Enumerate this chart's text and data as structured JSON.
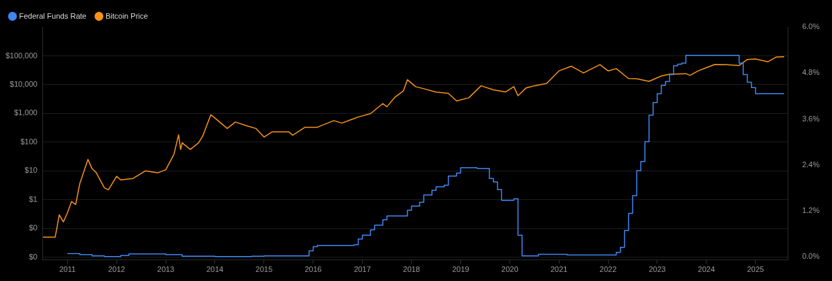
{
  "chart_data": {
    "type": "line",
    "log": "y",
    "grid": "y",
    "legend": "top left",
    "xlim": [
      "2010-07",
      "2025-09"
    ],
    "xticks": [
      "2011",
      "2012",
      "2013",
      "2014",
      "2015",
      "2016",
      "2017",
      "2018",
      "2019",
      "2020",
      "2021",
      "2022",
      "2023",
      "2024",
      "2025"
    ],
    "ylim": [
      0.008,
      1000000
    ],
    "yticks": [
      {
        "value": 0.01,
        "label": "$0"
      },
      {
        "value": 0.1,
        "label": "$0"
      },
      {
        "value": 1,
        "label": "$1"
      },
      {
        "value": 10,
        "label": "$10"
      },
      {
        "value": 100,
        "label": "$100"
      },
      {
        "value": 1000,
        "label": "$1,000"
      },
      {
        "value": 10000,
        "label": "$10,000"
      },
      {
        "value": 100000,
        "label": "$100,000"
      }
    ],
    "y2lim": [
      -0.08,
      6.0
    ],
    "y2ticks": [
      {
        "value": 0,
        "label": "0.0%"
      },
      {
        "value": 1.2,
        "label": "1.2%"
      },
      {
        "value": 2.4,
        "label": "2.4%"
      },
      {
        "value": 3.6,
        "label": "3.6%"
      },
      {
        "value": 4.8,
        "label": "4.8%"
      },
      {
        "value": 6,
        "label": "6.0%"
      }
    ],
    "series": [
      {
        "name": "Federal Funds Rate",
        "type": "step",
        "axis": "y2",
        "color": "#3f86f0",
        "x": [
          "2011-01",
          "2011-04",
          "2011-07",
          "2011-10",
          "2012-02",
          "2012-04",
          "2013-01",
          "2013-05",
          "2014-01",
          "2014-10",
          "2015-01",
          "2015-12",
          "2016-01",
          "2016-02",
          "2016-11",
          "2016-12",
          "2017-01",
          "2017-03",
          "2017-04",
          "2017-06",
          "2017-07",
          "2017-12",
          "2018-01",
          "2018-03",
          "2018-04",
          "2018-06",
          "2018-07",
          "2018-09",
          "2018-10",
          "2018-12",
          "2019-01",
          "2019-05",
          "2019-08",
          "2019-09",
          "2019-10",
          "2019-11",
          "2020-02",
          "2020-03",
          "2020-04",
          "2020-08",
          "2021-03",
          "2022-03",
          "2022-04",
          "2022-05",
          "2022-06",
          "2022-07",
          "2022-08",
          "2022-09",
          "2022-10",
          "2022-11",
          "2022-12",
          "2023-01",
          "2023-02",
          "2023-03",
          "2023-04",
          "2023-05",
          "2023-06",
          "2023-07",
          "2023-08",
          "2024-09",
          "2024-10",
          "2024-11",
          "2024-12",
          "2025-01",
          "2025-08"
        ],
        "values": [
          0.09,
          0.06,
          0.03,
          0.01,
          0.04,
          0.08,
          0.06,
          0.02,
          0.01,
          0.02,
          0.03,
          0.16,
          0.27,
          0.3,
          0.32,
          0.47,
          0.57,
          0.71,
          0.83,
          0.97,
          1.07,
          1.22,
          1.33,
          1.43,
          1.62,
          1.74,
          1.83,
          1.87,
          2.11,
          2.19,
          2.33,
          2.31,
          2.05,
          1.96,
          1.76,
          1.48,
          1.52,
          0.57,
          0.03,
          0.07,
          0.05,
          0.12,
          0.25,
          0.69,
          1.14,
          1.6,
          2.25,
          2.49,
          3.01,
          3.7,
          4.03,
          4.26,
          4.48,
          4.58,
          4.76,
          4.99,
          5.03,
          5.06,
          5.26,
          5.06,
          4.76,
          4.56,
          4.42,
          4.26,
          4.26
        ]
      },
      {
        "name": "Bitcoin Price",
        "type": "line",
        "axis": "y",
        "color": "#f7931a",
        "x": [
          "2010-07",
          "2010-10",
          "2010-11",
          "2010-12",
          "2011-01",
          "2011-02",
          "2011-03",
          "2011-04",
          "2011-06",
          "2011-07",
          "2011-08",
          "2011-10",
          "2011-11",
          "2012-01",
          "2012-02",
          "2012-05",
          "2012-08",
          "2012-11",
          "2013-01",
          "2013-03",
          "2013-04-05",
          "2013-04-20",
          "2013-05",
          "2013-07",
          "2013-09",
          "2013-10",
          "2013-12",
          "2014-01",
          "2014-04",
          "2014-06",
          "2014-09",
          "2014-11",
          "2015-01",
          "2015-03",
          "2015-07",
          "2015-08",
          "2015-11",
          "2016-02",
          "2016-06",
          "2016-08",
          "2016-12",
          "2017-03",
          "2017-06",
          "2017-07",
          "2017-09",
          "2017-11",
          "2017-12",
          "2018-02",
          "2018-04",
          "2018-07",
          "2018-10",
          "2018-12",
          "2019-03",
          "2019-06",
          "2019-09",
          "2019-12",
          "2020-02",
          "2020-03",
          "2020-05",
          "2020-07",
          "2020-10",
          "2021-01",
          "2021-04",
          "2021-07",
          "2021-11",
          "2022-01",
          "2022-03",
          "2022-06",
          "2022-08",
          "2022-11",
          "2023-02",
          "2023-04",
          "2023-08",
          "2023-09",
          "2023-11",
          "2024-03",
          "2024-06",
          "2024-09",
          "2024-11",
          "2025-01",
          "2025-04",
          "2025-06",
          "2025-08"
        ],
        "values": [
          0.05,
          0.05,
          0.3,
          0.17,
          0.35,
          0.87,
          0.68,
          3.6,
          25,
          12,
          8.8,
          2.6,
          2.2,
          6.5,
          4.9,
          5.5,
          10,
          8.6,
          11,
          38,
          180,
          56,
          95,
          56,
          95,
          160,
          895,
          690,
          300,
          500,
          360,
          300,
          150,
          230,
          230,
          175,
          330,
          330,
          560,
          460,
          750,
          980,
          2200,
          1700,
          3700,
          6000,
          14800,
          8500,
          7200,
          5500,
          5000,
          2700,
          3500,
          9100,
          6600,
          5600,
          8500,
          4100,
          7700,
          9100,
          11000,
          30000,
          43500,
          25400,
          49400,
          30000,
          36000,
          16200,
          16000,
          13000,
          20000,
          23000,
          24000,
          21000,
          30000,
          50000,
          49000,
          46000,
          75000,
          78000,
          62000,
          90000,
          93000
        ]
      }
    ]
  }
}
